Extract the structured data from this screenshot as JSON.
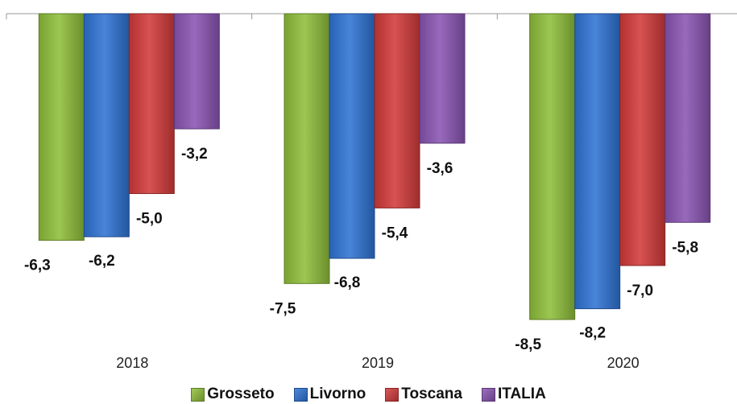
{
  "chart_data": {
    "type": "bar",
    "categories": [
      "2018",
      "2019",
      "2020"
    ],
    "series": [
      {
        "name": "Grosseto",
        "values": [
          -6.3,
          -7.5,
          -8.5
        ],
        "labels": [
          "-6,3",
          "-7,5",
          "-8,5"
        ],
        "color": "#8fbf3a"
      },
      {
        "name": "Livorno",
        "values": [
          -6.2,
          -6.8,
          -8.2
        ],
        "labels": [
          "-6,2",
          "-6,8",
          "-8,2"
        ],
        "color": "#2f73d4"
      },
      {
        "name": "Toscana",
        "values": [
          -5.0,
          -5.4,
          -7.0
        ],
        "labels": [
          "-5,0",
          "-5,4",
          "-7,0"
        ],
        "color": "#d33a3a"
      },
      {
        "name": "ITALIA",
        "values": [
          -3.2,
          -3.6,
          -5.8
        ],
        "labels": [
          "-3,2",
          "-3,6",
          "-5,8"
        ],
        "color": "#8a55b3"
      }
    ],
    "ylim": [
      -8.5,
      0
    ],
    "grid": false,
    "legend": "bottom",
    "title": "",
    "xlabel": "",
    "ylabel": ""
  }
}
